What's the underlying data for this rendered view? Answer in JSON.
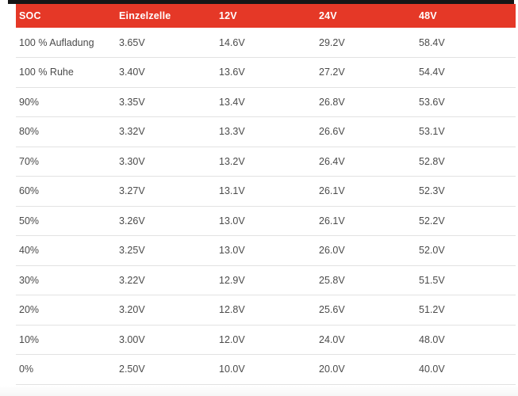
{
  "colors": {
    "header_bg": "#e53827",
    "header_text": "#ffffff",
    "row_text": "#4b4b4b",
    "divider": "#e2e2e2",
    "top_bar": "#161616"
  },
  "chart_data": {
    "type": "table",
    "columns": [
      "SOC",
      "Einzelzelle",
      "12V",
      "24V",
      "48V"
    ],
    "rows": [
      [
        "100 % Aufladung",
        "3.65V",
        "14.6V",
        "29.2V",
        "58.4V"
      ],
      [
        "100 % Ruhe",
        "3.40V",
        "13.6V",
        "27.2V",
        "54.4V"
      ],
      [
        "90%",
        "3.35V",
        "13.4V",
        "26.8V",
        "53.6V"
      ],
      [
        "80%",
        "3.32V",
        "13.3V",
        "26.6V",
        "53.1V"
      ],
      [
        "70%",
        "3.30V",
        "13.2V",
        "26.4V",
        "52.8V"
      ],
      [
        "60%",
        "3.27V",
        "13.1V",
        "26.1V",
        "52.3V"
      ],
      [
        "50%",
        "3.26V",
        "13.0V",
        "26.1V",
        "52.2V"
      ],
      [
        "40%",
        "3.25V",
        "13.0V",
        "26.0V",
        "52.0V"
      ],
      [
        "30%",
        "3.22V",
        "12.9V",
        "25.8V",
        "51.5V"
      ],
      [
        "20%",
        "3.20V",
        "12.8V",
        "25.6V",
        "51.2V"
      ],
      [
        "10%",
        "3.00V",
        "12.0V",
        "24.0V",
        "48.0V"
      ],
      [
        "0%",
        "2.50V",
        "10.0V",
        "20.0V",
        "40.0V"
      ]
    ]
  }
}
